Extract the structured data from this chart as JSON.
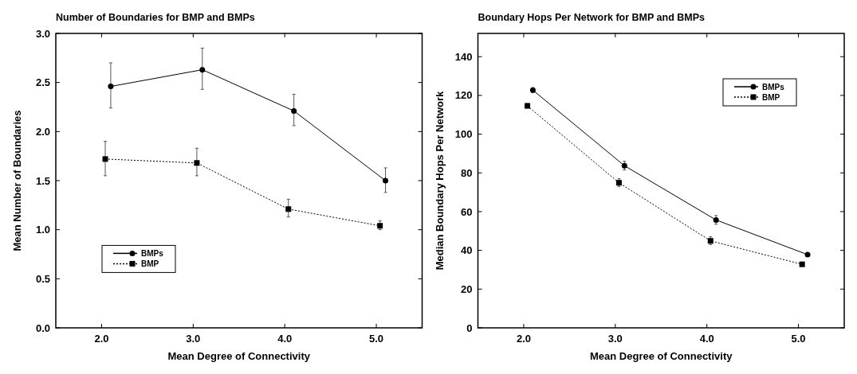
{
  "chart_data": [
    {
      "type": "line",
      "title": "Number of Boundaries for BMP and BMPs",
      "xlabel": "Mean Degree of Connectivity",
      "ylabel": "Mean Number of Boundaries",
      "xlim": [
        1.5,
        5.5
      ],
      "xticks": [
        {
          "value": 2,
          "label": "2.0"
        },
        {
          "value": 3,
          "label": "3.0"
        },
        {
          "value": 4,
          "label": "4.0"
        },
        {
          "value": 5,
          "label": "5.0"
        }
      ],
      "ylim": [
        0,
        3
      ],
      "yticks": [
        {
          "value": 0,
          "label": "0.0"
        },
        {
          "value": 0.5,
          "label": "0.5"
        },
        {
          "value": 1,
          "label": "1.0"
        },
        {
          "value": 1.5,
          "label": "1.5"
        },
        {
          "value": 2,
          "label": "2.0"
        },
        {
          "value": 2.5,
          "label": "2.5"
        },
        {
          "value": 3,
          "label": "3.0"
        }
      ],
      "legend": "bottom left",
      "grid": false,
      "series": [
        {
          "name": "BMPs",
          "color": "#000000",
          "marker": "circle",
          "line_style": "solid",
          "x": [
            2.1,
            3.1,
            4.1,
            5.1
          ],
          "values": [
            2.46,
            2.63,
            2.21,
            1.5
          ],
          "errors": [
            [
              2.24,
              2.7
            ],
            [
              2.43,
              2.85
            ],
            [
              2.06,
              2.38
            ],
            [
              1.38,
              1.63
            ]
          ]
        },
        {
          "name": "BMP",
          "color": "#000000",
          "marker": "square",
          "line_style": "dotted",
          "x": [
            2.04,
            3.04,
            4.04,
            5.04
          ],
          "values": [
            1.72,
            1.68,
            1.21,
            1.04
          ],
          "errors": [
            [
              1.55,
              1.9
            ],
            [
              1.55,
              1.83
            ],
            [
              1.13,
              1.31
            ],
            [
              1.0,
              1.09
            ]
          ]
        }
      ]
    },
    {
      "type": "line",
      "title": "Boundary Hops Per Network for BMP and BMPs",
      "xlabel": "Mean Degree of Connectivity",
      "ylabel": "Median Boundary Hops Per Network",
      "xlim": [
        1.5,
        5.5
      ],
      "xticks": [
        {
          "value": 2,
          "label": "2.0"
        },
        {
          "value": 3,
          "label": "3.0"
        },
        {
          "value": 4,
          "label": "4.0"
        },
        {
          "value": 5,
          "label": "5.0"
        }
      ],
      "ylim": [
        0,
        152
      ],
      "yticks": [
        0,
        20,
        40,
        60,
        80,
        100,
        120,
        140
      ],
      "legend": "top right",
      "grid": false,
      "series": [
        {
          "name": "BMPs",
          "color": "#000000",
          "marker": "circle",
          "line_style": "solid",
          "x": [
            2.1,
            3.1,
            4.1,
            5.1
          ],
          "values": [
            122.7,
            83.7,
            55.7,
            37.8
          ],
          "errors": [
            [
              121.5,
              124
            ],
            [
              81.5,
              86
            ],
            [
              53.5,
              58
            ],
            [
              37,
              38.7
            ]
          ]
        },
        {
          "name": "BMP",
          "color": "#000000",
          "marker": "square",
          "line_style": "dotted",
          "x": [
            2.04,
            3.04,
            4.04,
            5.04
          ],
          "values": [
            114.6,
            74.9,
            44.9,
            32.8
          ],
          "errors": [
            [
              113.5,
              115.8
            ],
            [
              73,
              77
            ],
            [
              43,
              47
            ],
            [
              32,
              33.6
            ]
          ]
        }
      ]
    }
  ]
}
